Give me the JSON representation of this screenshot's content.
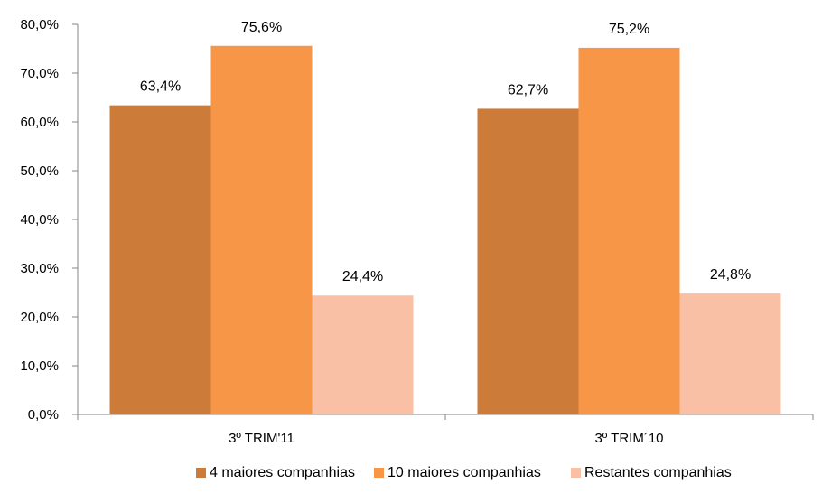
{
  "chart_data": {
    "type": "bar",
    "title": "",
    "xlabel": "",
    "ylabel": "",
    "categories": [
      "3º TRIM'11",
      "3º TRIM´10"
    ],
    "series": [
      {
        "name": "4 maiores companhias",
        "values": [
          63.4,
          62.7
        ],
        "labels": [
          "63,4%",
          "62,7%"
        ],
        "color": "#cd7b38"
      },
      {
        "name": "10 maiores companhias",
        "values": [
          75.6,
          75.2
        ],
        "labels": [
          "75,6%",
          "75,2%"
        ],
        "color": "#f79646"
      },
      {
        "name": "Restantes companhias",
        "values": [
          24.4,
          24.8
        ],
        "labels": [
          "24,4%",
          "24,8%"
        ],
        "color": "#fac0a6"
      }
    ],
    "ylim": [
      0,
      80
    ],
    "y_ticks": [
      0,
      10,
      20,
      30,
      40,
      50,
      60,
      70,
      80
    ],
    "y_tick_labels": [
      "0,0%",
      "10,0%",
      "20,0%",
      "30,0%",
      "40,0%",
      "50,0%",
      "60,0%",
      "70,0%",
      "80,0%"
    ],
    "grid": false,
    "legend_position": "bottom"
  }
}
